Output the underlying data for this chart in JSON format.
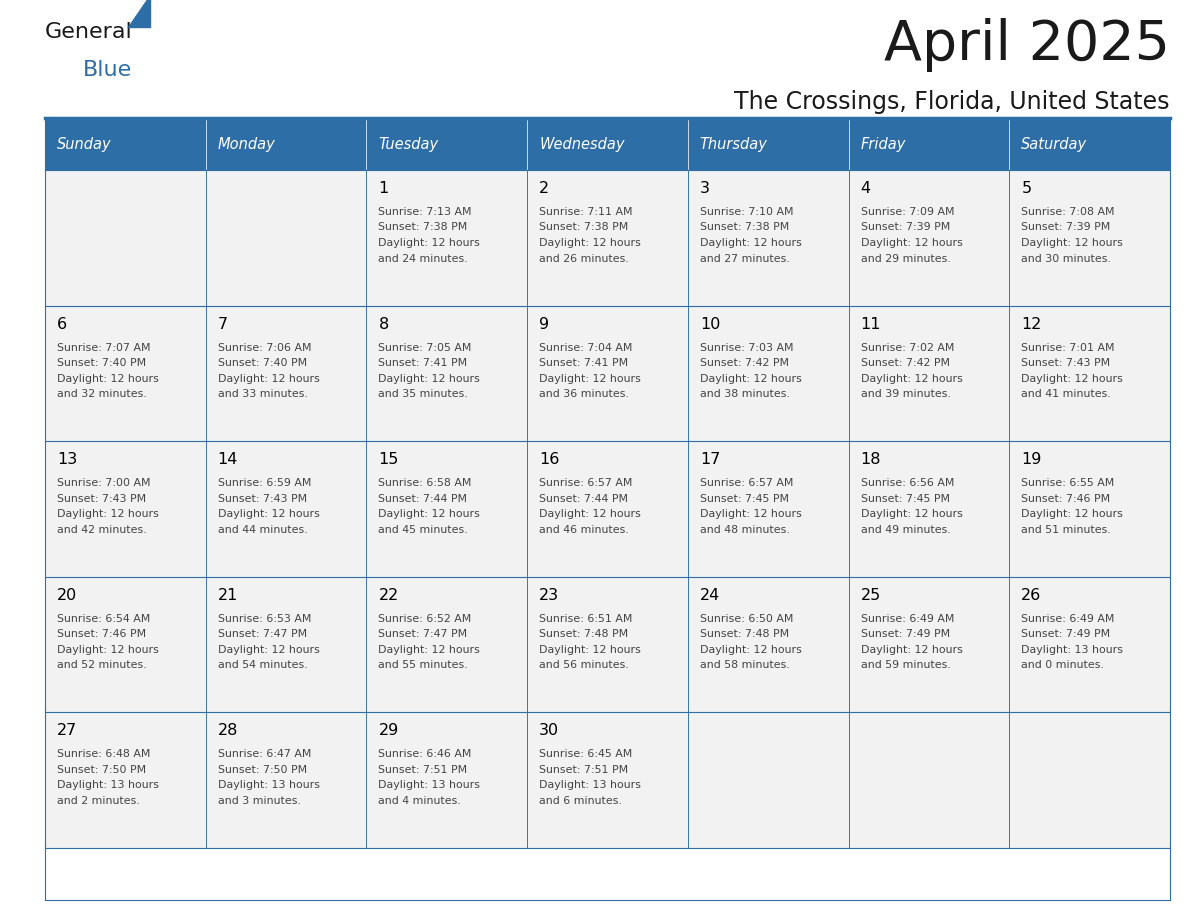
{
  "title": "April 2025",
  "subtitle": "The Crossings, Florida, United States",
  "header_bg_color": "#2E6EA6",
  "header_text_color": "#FFFFFF",
  "cell_bg_even": "#FFFFFF",
  "cell_bg_odd": "#F2F2F2",
  "cell_border_color": "#2E6EA6",
  "day_number_color": "#000000",
  "cell_text_color": "#444444",
  "logo_text_color": "#1a1a1a",
  "logo_blue_color": "#2E6EA6",
  "days_of_week": [
    "Sunday",
    "Monday",
    "Tuesday",
    "Wednesday",
    "Thursday",
    "Friday",
    "Saturday"
  ],
  "weeks": [
    [
      {
        "day": "",
        "sunrise": "",
        "sunset": "",
        "daylight_h": "",
        "daylight_m": ""
      },
      {
        "day": "",
        "sunrise": "",
        "sunset": "",
        "daylight_h": "",
        "daylight_m": ""
      },
      {
        "day": "1",
        "sunrise": "7:13 AM",
        "sunset": "7:38 PM",
        "daylight_h": "12",
        "daylight_m": "24"
      },
      {
        "day": "2",
        "sunrise": "7:11 AM",
        "sunset": "7:38 PM",
        "daylight_h": "12",
        "daylight_m": "26"
      },
      {
        "day": "3",
        "sunrise": "7:10 AM",
        "sunset": "7:38 PM",
        "daylight_h": "12",
        "daylight_m": "27"
      },
      {
        "day": "4",
        "sunrise": "7:09 AM",
        "sunset": "7:39 PM",
        "daylight_h": "12",
        "daylight_m": "29"
      },
      {
        "day": "5",
        "sunrise": "7:08 AM",
        "sunset": "7:39 PM",
        "daylight_h": "12",
        "daylight_m": "30"
      }
    ],
    [
      {
        "day": "6",
        "sunrise": "7:07 AM",
        "sunset": "7:40 PM",
        "daylight_h": "12",
        "daylight_m": "32"
      },
      {
        "day": "7",
        "sunrise": "7:06 AM",
        "sunset": "7:40 PM",
        "daylight_h": "12",
        "daylight_m": "33"
      },
      {
        "day": "8",
        "sunrise": "7:05 AM",
        "sunset": "7:41 PM",
        "daylight_h": "12",
        "daylight_m": "35"
      },
      {
        "day": "9",
        "sunrise": "7:04 AM",
        "sunset": "7:41 PM",
        "daylight_h": "12",
        "daylight_m": "36"
      },
      {
        "day": "10",
        "sunrise": "7:03 AM",
        "sunset": "7:42 PM",
        "daylight_h": "12",
        "daylight_m": "38"
      },
      {
        "day": "11",
        "sunrise": "7:02 AM",
        "sunset": "7:42 PM",
        "daylight_h": "12",
        "daylight_m": "39"
      },
      {
        "day": "12",
        "sunrise": "7:01 AM",
        "sunset": "7:43 PM",
        "daylight_h": "12",
        "daylight_m": "41"
      }
    ],
    [
      {
        "day": "13",
        "sunrise": "7:00 AM",
        "sunset": "7:43 PM",
        "daylight_h": "12",
        "daylight_m": "42"
      },
      {
        "day": "14",
        "sunrise": "6:59 AM",
        "sunset": "7:43 PM",
        "daylight_h": "12",
        "daylight_m": "44"
      },
      {
        "day": "15",
        "sunrise": "6:58 AM",
        "sunset": "7:44 PM",
        "daylight_h": "12",
        "daylight_m": "45"
      },
      {
        "day": "16",
        "sunrise": "6:57 AM",
        "sunset": "7:44 PM",
        "daylight_h": "12",
        "daylight_m": "46"
      },
      {
        "day": "17",
        "sunrise": "6:57 AM",
        "sunset": "7:45 PM",
        "daylight_h": "12",
        "daylight_m": "48"
      },
      {
        "day": "18",
        "sunrise": "6:56 AM",
        "sunset": "7:45 PM",
        "daylight_h": "12",
        "daylight_m": "49"
      },
      {
        "day": "19",
        "sunrise": "6:55 AM",
        "sunset": "7:46 PM",
        "daylight_h": "12",
        "daylight_m": "51"
      }
    ],
    [
      {
        "day": "20",
        "sunrise": "6:54 AM",
        "sunset": "7:46 PM",
        "daylight_h": "12",
        "daylight_m": "52"
      },
      {
        "day": "21",
        "sunrise": "6:53 AM",
        "sunset": "7:47 PM",
        "daylight_h": "12",
        "daylight_m": "54"
      },
      {
        "day": "22",
        "sunrise": "6:52 AM",
        "sunset": "7:47 PM",
        "daylight_h": "12",
        "daylight_m": "55"
      },
      {
        "day": "23",
        "sunrise": "6:51 AM",
        "sunset": "7:48 PM",
        "daylight_h": "12",
        "daylight_m": "56"
      },
      {
        "day": "24",
        "sunrise": "6:50 AM",
        "sunset": "7:48 PM",
        "daylight_h": "12",
        "daylight_m": "58"
      },
      {
        "day": "25",
        "sunrise": "6:49 AM",
        "sunset": "7:49 PM",
        "daylight_h": "12",
        "daylight_m": "59"
      },
      {
        "day": "26",
        "sunrise": "6:49 AM",
        "sunset": "7:49 PM",
        "daylight_h": "13",
        "daylight_m": "0"
      }
    ],
    [
      {
        "day": "27",
        "sunrise": "6:48 AM",
        "sunset": "7:50 PM",
        "daylight_h": "13",
        "daylight_m": "2"
      },
      {
        "day": "28",
        "sunrise": "6:47 AM",
        "sunset": "7:50 PM",
        "daylight_h": "13",
        "daylight_m": "3"
      },
      {
        "day": "29",
        "sunrise": "6:46 AM",
        "sunset": "7:51 PM",
        "daylight_h": "13",
        "daylight_m": "4"
      },
      {
        "day": "30",
        "sunrise": "6:45 AM",
        "sunset": "7:51 PM",
        "daylight_h": "13",
        "daylight_m": "6"
      },
      {
        "day": "",
        "sunrise": "",
        "sunset": "",
        "daylight_h": "",
        "daylight_m": ""
      },
      {
        "day": "",
        "sunrise": "",
        "sunset": "",
        "daylight_h": "",
        "daylight_m": ""
      },
      {
        "day": "",
        "sunrise": "",
        "sunset": "",
        "daylight_h": "",
        "daylight_m": ""
      }
    ]
  ]
}
